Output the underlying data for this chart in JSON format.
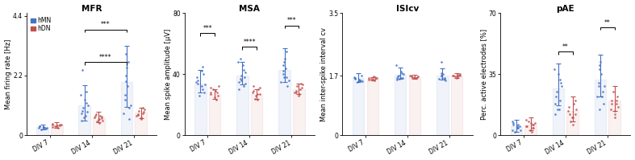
{
  "panels": [
    {
      "title": "MFR",
      "ylabel": "Mean firing rate [Hz]",
      "ylim": [
        0,
        4.5
      ],
      "yticks": [
        0,
        2.2,
        4.4
      ],
      "ytick_labels": [
        "0",
        "2.2",
        "4.4"
      ],
      "groups": [
        "DIV 7",
        "DIV 14",
        "DIV 21"
      ],
      "hMN_bars": [
        0.3,
        1.1,
        1.95
      ],
      "hDN_bars": [
        0.38,
        0.65,
        0.82
      ],
      "hMN_err_up": [
        0.1,
        0.75,
        1.35
      ],
      "hMN_err_dn": [
        0.1,
        0.55,
        0.9
      ],
      "hDN_err_up": [
        0.1,
        0.2,
        0.2
      ],
      "hDN_err_dn": [
        0.1,
        0.18,
        0.18
      ],
      "hMN_dots": [
        [
          0.22,
          0.26,
          0.28,
          0.3,
          0.32,
          0.34,
          0.28,
          0.25,
          0.3,
          0.27
        ],
        [
          0.55,
          0.7,
          0.8,
          0.9,
          1.0,
          1.1,
          1.2,
          1.3,
          1.5,
          1.6,
          0.65,
          0.85,
          2.4
        ],
        [
          0.6,
          0.8,
          1.0,
          1.3,
          1.5,
          1.8,
          2.0,
          2.2,
          2.5,
          2.7,
          1.1,
          3.0
        ]
      ],
      "hDN_dots": [
        [
          0.28,
          0.32,
          0.35,
          0.38,
          0.4,
          0.36,
          0.34,
          0.3,
          0.38,
          0.42
        ],
        [
          0.45,
          0.52,
          0.58,
          0.62,
          0.65,
          0.7,
          0.72,
          0.68,
          0.78,
          0.6,
          0.55
        ],
        [
          0.6,
          0.65,
          0.7,
          0.75,
          0.8,
          0.85,
          0.9,
          0.95,
          1.0,
          0.78
        ]
      ],
      "sig_brackets": [
        {
          "xL": 1,
          "xR": 2,
          "y": 2.7,
          "label": "****",
          "side": "hMN_hMN"
        },
        {
          "xL": 1,
          "xR": 2,
          "y": 3.9,
          "label": "***",
          "side": "hMN_hMN"
        }
      ]
    },
    {
      "title": "MSA",
      "ylabel": "Mean spike amplitude [μV]",
      "ylim": [
        0,
        80
      ],
      "yticks": [
        0,
        40,
        80
      ],
      "ytick_labels": [
        "0",
        "40",
        "80"
      ],
      "groups": [
        "DIV 7",
        "DIV 14",
        "DIV 21"
      ],
      "hMN_bars": [
        34,
        39,
        43
      ],
      "hDN_bars": [
        27,
        27,
        30
      ],
      "hMN_err_up": [
        9,
        9,
        14
      ],
      "hMN_err_dn": [
        6,
        6,
        8
      ],
      "hDN_err_up": [
        3,
        3,
        4
      ],
      "hDN_err_dn": [
        3,
        3,
        3
      ],
      "hMN_dots": [
        [
          26,
          28,
          30,
          32,
          34,
          36,
          38,
          40,
          42,
          45,
          35,
          33
        ],
        [
          30,
          32,
          35,
          37,
          39,
          41,
          43,
          46,
          48,
          38,
          36,
          34,
          50
        ],
        [
          32,
          35,
          38,
          40,
          42,
          44,
          46,
          48,
          50,
          55,
          36,
          38
        ]
      ],
      "hDN_dots": [
        [
          23,
          25,
          26,
          27,
          28,
          29,
          30,
          31,
          32,
          28
        ],
        [
          23,
          24,
          26,
          27,
          28,
          29,
          30,
          31,
          32,
          27
        ],
        [
          26,
          27,
          28,
          29,
          30,
          31,
          32,
          33,
          34,
          28
        ]
      ],
      "sig_brackets": [
        {
          "xL": 0,
          "xR": 0,
          "y": 67,
          "label": "***",
          "side": "hMN_hDN"
        },
        {
          "xL": 1,
          "xR": 1,
          "y": 58,
          "label": "****",
          "side": "hMN_hDN"
        },
        {
          "xL": 2,
          "xR": 2,
          "y": 72,
          "label": "***",
          "side": "hMN_hDN"
        }
      ]
    },
    {
      "title": "ISIcv",
      "ylabel": "Mean inter-spike interval cv",
      "ylim": [
        0,
        3.5
      ],
      "yticks": [
        0,
        1.7,
        3.5
      ],
      "ytick_labels": [
        "0",
        "1.7",
        "3.5"
      ],
      "groups": [
        "DIV 7",
        "DIV 14",
        "DIV 21"
      ],
      "hMN_bars": [
        1.63,
        1.73,
        1.72
      ],
      "hDN_bars": [
        1.62,
        1.67,
        1.7
      ],
      "hMN_err_up": [
        0.15,
        0.22,
        0.2
      ],
      "hMN_err_dn": [
        0.1,
        0.12,
        0.12
      ],
      "hDN_err_up": [
        0.05,
        0.06,
        0.07
      ],
      "hDN_err_dn": [
        0.05,
        0.05,
        0.05
      ],
      "hMN_dots": [
        [
          1.52,
          1.55,
          1.58,
          1.6,
          1.62,
          1.65,
          1.67,
          1.7,
          1.58,
          1.55
        ],
        [
          1.6,
          1.63,
          1.65,
          1.68,
          1.72,
          1.75,
          1.78,
          1.82,
          2.0,
          1.65,
          1.62
        ],
        [
          1.58,
          1.62,
          1.65,
          1.7,
          1.72,
          1.75,
          1.78,
          2.1,
          1.65,
          1.62
        ]
      ],
      "hDN_dots": [
        [
          1.58,
          1.6,
          1.62,
          1.64,
          1.66,
          1.68,
          1.62,
          1.6,
          1.64
        ],
        [
          1.63,
          1.65,
          1.67,
          1.68,
          1.7,
          1.72,
          1.65,
          1.67,
          1.69
        ],
        [
          1.65,
          1.67,
          1.7,
          1.72,
          1.73,
          1.75,
          1.68,
          1.7,
          1.72
        ]
      ],
      "sig_brackets": []
    },
    {
      "title": "pAE",
      "ylabel": "Perc. active electrodes [%]",
      "ylim": [
        0,
        70
      ],
      "yticks": [
        0,
        35,
        70
      ],
      "ytick_labels": [
        "0",
        "35",
        "70"
      ],
      "groups": [
        "DIV 7",
        "DIV 14",
        "DIV 21"
      ],
      "hMN_bars": [
        5,
        27,
        32
      ],
      "hDN_bars": [
        6,
        14,
        20
      ],
      "hMN_err_up": [
        4,
        14,
        14
      ],
      "hMN_err_dn": [
        3,
        10,
        10
      ],
      "hDN_err_up": [
        4,
        8,
        8
      ],
      "hDN_err_dn": [
        3,
        6,
        6
      ],
      "hMN_dots": [
        [
          2,
          3,
          4,
          5,
          6,
          7,
          8,
          5,
          4,
          6,
          3
        ],
        [
          12,
          15,
          18,
          22,
          25,
          28,
          32,
          35,
          38,
          20,
          15,
          30
        ],
        [
          18,
          22,
          25,
          28,
          30,
          35,
          38,
          40,
          42,
          22,
          28,
          15
        ]
      ],
      "hDN_dots": [
        [
          2,
          3,
          4,
          5,
          6,
          7,
          8,
          5,
          7,
          9,
          4,
          6
        ],
        [
          6,
          8,
          10,
          12,
          14,
          16,
          18,
          20,
          12,
          10,
          15
        ],
        [
          10,
          12,
          15,
          18,
          20,
          22,
          25,
          16,
          18,
          20,
          14
        ]
      ],
      "sig_brackets": [
        {
          "xL": 1,
          "xR": 1,
          "y": 48,
          "label": "**",
          "side": "hMN_hDN"
        },
        {
          "xL": 2,
          "xR": 2,
          "y": 62,
          "label": "**",
          "side": "hMN_hDN"
        }
      ]
    }
  ],
  "hMN_color": "#4472C4",
  "hDN_color": "#C0504D",
  "bar_width": 0.28,
  "dot_size": 3.5,
  "capsize": 2.5,
  "background_color": "#ffffff",
  "title_fontsize": 7.5,
  "label_fontsize": 6,
  "tick_fontsize": 5.5,
  "dot_alpha": 0.85,
  "bar_fill_alpha": 0.08,
  "bar_edge_alpha": 0.9
}
